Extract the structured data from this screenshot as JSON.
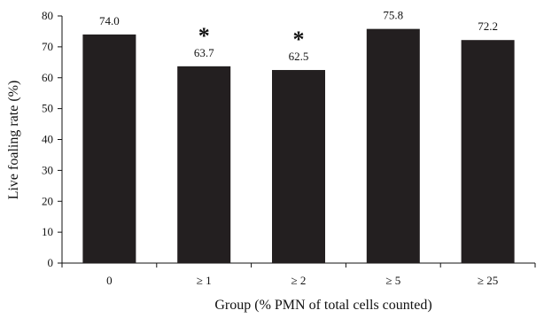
{
  "chart_data": {
    "type": "bar",
    "title": "",
    "xlabel": "Group (% PMN of total cells counted)",
    "ylabel": "Live foaling rate (%)",
    "categories": [
      "0",
      "≥ 1",
      "≥ 2",
      "≥ 5",
      "≥ 25"
    ],
    "values": [
      74.0,
      63.7,
      62.5,
      75.8,
      72.2
    ],
    "value_labels": [
      "74.0",
      "63.7",
      "62.5",
      "75.8",
      "72.2"
    ],
    "annotations": [
      "",
      "*",
      "*",
      "",
      ""
    ],
    "ylim": [
      0,
      80
    ],
    "yticks": [
      0,
      10,
      20,
      30,
      40,
      50,
      60,
      70,
      80
    ],
    "grid": false,
    "legend": "none",
    "bar_color": "#231f20"
  }
}
